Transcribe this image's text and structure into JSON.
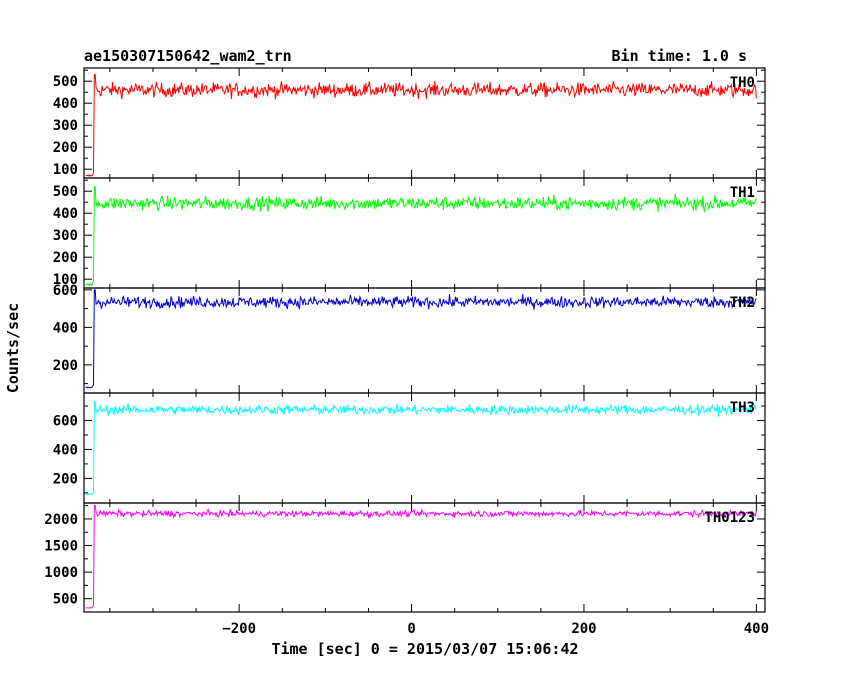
{
  "header": {
    "title": "ae150307150642_wam2_trn",
    "bin_time": "Bin time: 1.0 s"
  },
  "chart_data": {
    "type": "line",
    "title": "ae150307150642_wam2_trn",
    "xlabel": "Time [sec] 0 = 2015/03/07 15:06:42",
    "ylabel": "Counts/sec",
    "bin_time_s": 1.0,
    "xlim": [
      -380,
      410
    ],
    "x_ticks": [
      -200,
      0,
      200,
      400
    ],
    "trigger_time": -368,
    "grid": false,
    "panels": [
      {
        "name": "TH0",
        "color": "#ff0000",
        "ylim": [
          60,
          560
        ],
        "y_ticks": [
          100,
          200,
          300,
          400,
          500
        ],
        "pre_level": 70,
        "post_level": 460,
        "noise": 32,
        "peak": 530
      },
      {
        "name": "TH1",
        "color": "#00ff00",
        "ylim": [
          60,
          560
        ],
        "y_ticks": [
          100,
          200,
          300,
          400,
          500
        ],
        "pre_level": 75,
        "post_level": 445,
        "noise": 30,
        "peak": 520
      },
      {
        "name": "TH2",
        "color": "#0000cc",
        "ylim": [
          50,
          610
        ],
        "y_ticks": [
          200,
          400,
          600
        ],
        "pre_level": 80,
        "post_level": 535,
        "noise": 30,
        "peak": 600
      },
      {
        "name": "TH3",
        "color": "#00ffff",
        "ylim": [
          30,
          790
        ],
        "y_ticks": [
          200,
          400,
          600
        ],
        "pre_level": 90,
        "post_level": 675,
        "noise": 32,
        "peak": 730
      },
      {
        "name": "TH0123",
        "color": "#ff00ff",
        "ylim": [
          250,
          2300
        ],
        "y_ticks": [
          500,
          1000,
          1500,
          2000
        ],
        "pre_level": 330,
        "post_level": 2100,
        "noise": 55,
        "peak": 2250
      }
    ]
  }
}
